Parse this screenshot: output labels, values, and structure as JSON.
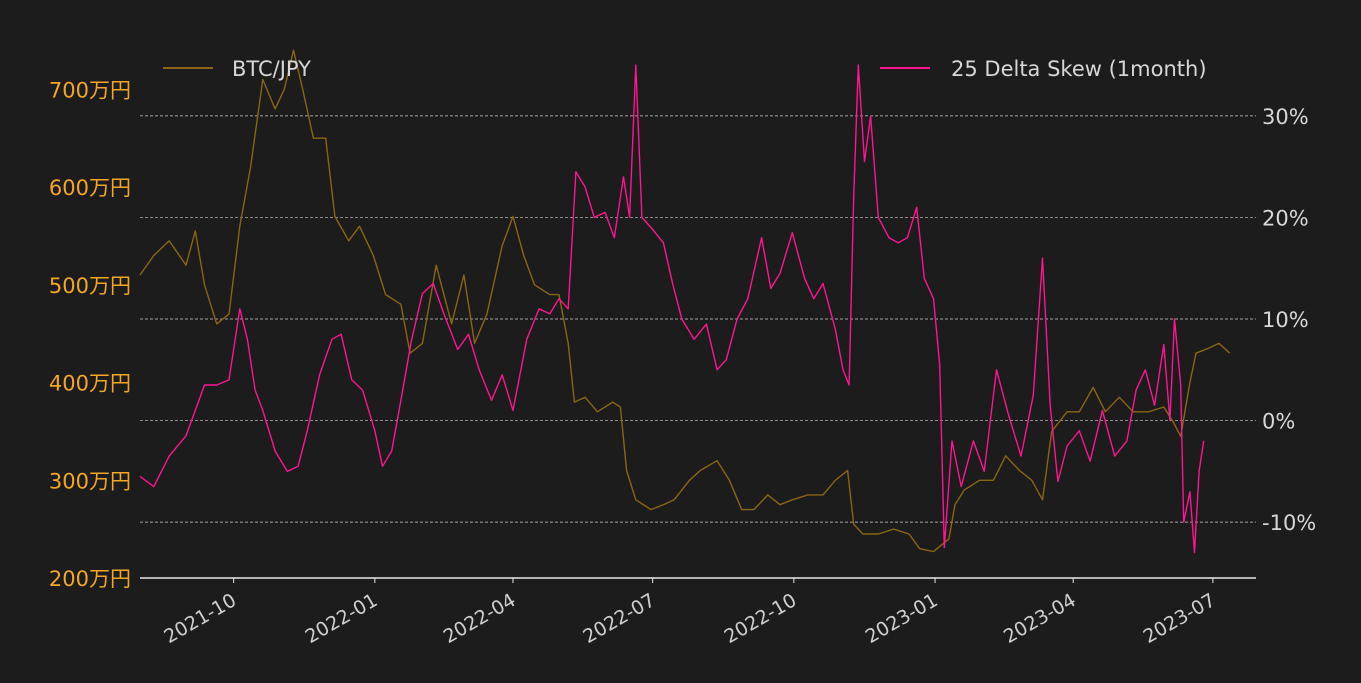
{
  "chart_data": {
    "type": "line",
    "title": "",
    "xlabel": "",
    "ylabel_left": "",
    "ylabel_right": "",
    "x_range": [
      "2021-08-01",
      "2023-06-20"
    ],
    "x_ticks": [
      "2021-10",
      "2022-01",
      "2022-04",
      "2022-07",
      "2022-10",
      "2023-01",
      "2023-04",
      "2023-07"
    ],
    "x_tick_dates": [
      "2021-10-01",
      "2022-01-01",
      "2022-04-01",
      "2022-07-01",
      "2022-10-01",
      "2023-01-01",
      "2023-04-01",
      "2023-07-01"
    ],
    "y_left": {
      "ticks": [
        200,
        300,
        400,
        500,
        600,
        700
      ],
      "tick_labels": [
        "200万円",
        "300万円",
        "400万円",
        "500万円",
        "600万円",
        "700万円"
      ],
      "ylim": [
        200,
        730
      ],
      "unit": "万円"
    },
    "y_right": {
      "ticks": [
        -10,
        0,
        10,
        20,
        30
      ],
      "tick_labels": [
        "-10%",
        "0%",
        "10%",
        "20%",
        "30%"
      ],
      "ylim": [
        -15.5,
        35.5
      ],
      "unit": "%"
    },
    "grid": true,
    "legend_placement": "top",
    "series": [
      {
        "name": "BTC/JPY",
        "axis": "left",
        "color": "#8b6514",
        "points": [
          [
            "2021-08-01",
            510
          ],
          [
            "2021-08-10",
            530
          ],
          [
            "2021-08-20",
            545
          ],
          [
            "2021-08-31",
            520
          ],
          [
            "2021-09-06",
            555
          ],
          [
            "2021-09-12",
            500
          ],
          [
            "2021-09-20",
            460
          ],
          [
            "2021-09-28",
            470
          ],
          [
            "2021-10-05",
            560
          ],
          [
            "2021-10-12",
            620
          ],
          [
            "2021-10-20",
            710
          ],
          [
            "2021-10-28",
            680
          ],
          [
            "2021-11-03",
            700
          ],
          [
            "2021-11-09",
            740
          ],
          [
            "2021-11-15",
            700
          ],
          [
            "2021-11-22",
            650
          ],
          [
            "2021-11-30",
            650
          ],
          [
            "2021-12-06",
            570
          ],
          [
            "2021-12-15",
            545
          ],
          [
            "2021-12-22",
            560
          ],
          [
            "2021-12-31",
            530
          ],
          [
            "2022-01-08",
            490
          ],
          [
            "2022-01-18",
            480
          ],
          [
            "2022-01-24",
            430
          ],
          [
            "2022-02-01",
            440
          ],
          [
            "2022-02-10",
            520
          ],
          [
            "2022-02-20",
            460
          ],
          [
            "2022-02-28",
            510
          ],
          [
            "2022-03-07",
            440
          ],
          [
            "2022-03-15",
            470
          ],
          [
            "2022-03-25",
            540
          ],
          [
            "2022-04-01",
            570
          ],
          [
            "2022-04-08",
            530
          ],
          [
            "2022-04-15",
            500
          ],
          [
            "2022-04-25",
            490
          ],
          [
            "2022-05-01",
            490
          ],
          [
            "2022-05-07",
            440
          ],
          [
            "2022-05-11",
            380
          ],
          [
            "2022-05-18",
            385
          ],
          [
            "2022-05-26",
            370
          ],
          [
            "2022-06-05",
            380
          ],
          [
            "2022-06-10",
            375
          ],
          [
            "2022-06-14",
            310
          ],
          [
            "2022-06-20",
            280
          ],
          [
            "2022-06-30",
            270
          ],
          [
            "2022-07-08",
            275
          ],
          [
            "2022-07-15",
            280
          ],
          [
            "2022-07-25",
            300
          ],
          [
            "2022-08-01",
            310
          ],
          [
            "2022-08-12",
            320
          ],
          [
            "2022-08-20",
            300
          ],
          [
            "2022-08-28",
            270
          ],
          [
            "2022-09-05",
            270
          ],
          [
            "2022-09-14",
            285
          ],
          [
            "2022-09-22",
            275
          ],
          [
            "2022-09-30",
            280
          ],
          [
            "2022-10-10",
            285
          ],
          [
            "2022-10-20",
            285
          ],
          [
            "2022-10-28",
            300
          ],
          [
            "2022-11-05",
            310
          ],
          [
            "2022-11-09",
            255
          ],
          [
            "2022-11-15",
            245
          ],
          [
            "2022-11-25",
            245
          ],
          [
            "2022-12-05",
            250
          ],
          [
            "2022-12-15",
            245
          ],
          [
            "2022-12-22",
            230
          ],
          [
            "2022-12-31",
            227
          ],
          [
            "2023-01-10",
            240
          ],
          [
            "2023-01-14",
            275
          ],
          [
            "2023-01-20",
            290
          ],
          [
            "2023-01-30",
            300
          ],
          [
            "2023-02-08",
            300
          ],
          [
            "2023-02-16, ",
            325
          ],
          [
            "2023-02-25",
            310
          ],
          [
            "2023-03-05",
            300
          ],
          [
            "2023-03-12",
            280
          ],
          [
            "2023-03-18",
            350
          ],
          [
            "2023-03-28",
            370
          ],
          [
            "2023-04-05",
            370
          ],
          [
            "2023-04-14",
            395
          ],
          [
            "2023-04-22",
            370
          ],
          [
            "2023-05-01",
            385
          ],
          [
            "2023-05-10",
            370
          ],
          [
            "2023-05-20",
            370
          ],
          [
            "2023-05-30",
            375
          ],
          [
            "2023-06-05",
            360
          ],
          [
            "2023-06-10",
            345
          ],
          [
            "2023-06-16",
            400
          ],
          [
            "2023-06-20",
            430
          ],
          [
            "2023-06-28",
            435
          ],
          [
            "2023-07-05",
            440
          ],
          [
            "2023-07-12",
            430
          ]
        ]
      },
      {
        "name": "25 Delta Skew (1month)",
        "axis": "right",
        "color": "#ff1493",
        "points": [
          [
            "2021-08-01",
            -5.5
          ],
          [
            "2021-08-10",
            -6.5
          ],
          [
            "2021-08-20",
            -3.5
          ],
          [
            "2021-08-31",
            -1.5
          ],
          [
            "2021-09-06",
            1.0
          ],
          [
            "2021-09-12",
            3.5
          ],
          [
            "2021-09-20",
            3.5
          ],
          [
            "2021-09-28",
            4.0
          ],
          [
            "2021-10-05",
            11.0
          ],
          [
            "2021-10-10",
            8.0
          ],
          [
            "2021-10-15",
            3.0
          ],
          [
            "2021-10-20",
            1.0
          ],
          [
            "2021-10-28",
            -3.0
          ],
          [
            "2021-11-05",
            -5.0
          ],
          [
            "2021-11-12",
            -4.5
          ],
          [
            "2021-11-18",
            -1.0
          ],
          [
            "2021-11-26",
            4.5
          ],
          [
            "2021-12-04",
            8.0
          ],
          [
            "2021-12-10",
            8.5
          ],
          [
            "2021-12-17",
            4.0
          ],
          [
            "2021-12-24",
            3.0
          ],
          [
            "2022-01-01",
            -1.0
          ],
          [
            "2022-01-06",
            -4.5
          ],
          [
            "2022-01-12",
            -3.0
          ],
          [
            "2022-01-18",
            2.0
          ],
          [
            "2022-01-25",
            8.0
          ],
          [
            "2022-02-01",
            12.5
          ],
          [
            "2022-02-08",
            13.5
          ],
          [
            "2022-02-15",
            10.5
          ],
          [
            "2022-02-24",
            7.0
          ],
          [
            "2022-03-03",
            8.5
          ],
          [
            "2022-03-10",
            5.0
          ],
          [
            "2022-03-18",
            2.0
          ],
          [
            "2022-03-25",
            4.5
          ],
          [
            "2022-04-01",
            1.0
          ],
          [
            "2022-04-10",
            8.0
          ],
          [
            "2022-04-18",
            11.0
          ],
          [
            "2022-04-25",
            10.5
          ],
          [
            "2022-05-01",
            12.0
          ],
          [
            "2022-05-07",
            11.0
          ],
          [
            "2022-05-12",
            24.5
          ],
          [
            "2022-05-18",
            23.0
          ],
          [
            "2022-05-24",
            20.0
          ],
          [
            "2022-05-31",
            20.5
          ],
          [
            "2022-06-06",
            18.0
          ],
          [
            "2022-06-12",
            24.0
          ],
          [
            "2022-06-16",
            20.0
          ],
          [
            "2022-06-20",
            35.0
          ],
          [
            "2022-06-24",
            20.0
          ],
          [
            "2022-06-30",
            19.0
          ],
          [
            "2022-07-08",
            17.5
          ],
          [
            "2022-07-14",
            13.5
          ],
          [
            "2022-07-20",
            10.0
          ],
          [
            "2022-07-28",
            8.0
          ],
          [
            "2022-08-05",
            9.5
          ],
          [
            "2022-08-12",
            5.0
          ],
          [
            "2022-08-18",
            6.0
          ],
          [
            "2022-08-25",
            10.0
          ],
          [
            "2022-09-01",
            12.0
          ],
          [
            "2022-09-10",
            18.0
          ],
          [
            "2022-09-16",
            13.0
          ],
          [
            "2022-09-22",
            14.5
          ],
          [
            "2022-09-30",
            18.5
          ],
          [
            "2022-10-08",
            14.0
          ],
          [
            "2022-10-14",
            12.0
          ],
          [
            "2022-10-20",
            13.5
          ],
          [
            "2022-10-28",
            9.0
          ],
          [
            "2022-11-02",
            5.0
          ],
          [
            "2022-11-06",
            3.5
          ],
          [
            "2022-11-09",
            22.0
          ],
          [
            "2022-11-12",
            35.0
          ],
          [
            "2022-11-16",
            25.5
          ],
          [
            "2022-11-20",
            30.0
          ],
          [
            "2022-11-25",
            20.0
          ],
          [
            "2022-12-02",
            18.0
          ],
          [
            "2022-12-08",
            17.5
          ],
          [
            "2022-12-14",
            18.0
          ],
          [
            "2022-12-20",
            21.0
          ],
          [
            "2022-12-25",
            14.0
          ],
          [
            "2022-12-31",
            12.0
          ],
          [
            "2023-01-04",
            5.5
          ],
          [
            "2023-01-07",
            -12.5
          ],
          [
            "2023-01-12",
            -2.0
          ],
          [
            "2023-01-18",
            -6.5
          ],
          [
            "2023-01-26",
            -2.0
          ],
          [
            "2023-02-02",
            -5.0
          ],
          [
            "2023-02-10",
            5.0
          ],
          [
            "2023-02-18",
            0.5
          ],
          [
            "2023-02-26",
            -3.5
          ],
          [
            "2023-03-06",
            2.5
          ],
          [
            "2023-03-12",
            16.0
          ],
          [
            "2023-03-17",
            1.5
          ],
          [
            "2023-03-22",
            -6.0
          ],
          [
            "2023-03-28",
            -2.5
          ],
          [
            "2023-04-05",
            -1.0
          ],
          [
            "2023-04-12",
            -4.0
          ],
          [
            "2023-04-20",
            1.0
          ],
          [
            "2023-04-28",
            -3.5
          ],
          [
            "2023-05-06",
            -2.0
          ],
          [
            "2023-05-12",
            3.0
          ],
          [
            "2023-05-18",
            5.0
          ],
          [
            "2023-05-24",
            1.5
          ],
          [
            "2023-05-30",
            7.5
          ],
          [
            "2023-06-03",
            0.0
          ],
          [
            "2023-06-06",
            10.0
          ],
          [
            "2023-06-10",
            3.5
          ],
          [
            "2023-06-12",
            -10.0
          ],
          [
            "2023-06-16",
            -7.0
          ],
          [
            "2023-06-19",
            -13.0
          ],
          [
            "2023-06-22",
            -5.0
          ],
          [
            "2023-06-25",
            -2.0
          ]
        ]
      }
    ]
  }
}
